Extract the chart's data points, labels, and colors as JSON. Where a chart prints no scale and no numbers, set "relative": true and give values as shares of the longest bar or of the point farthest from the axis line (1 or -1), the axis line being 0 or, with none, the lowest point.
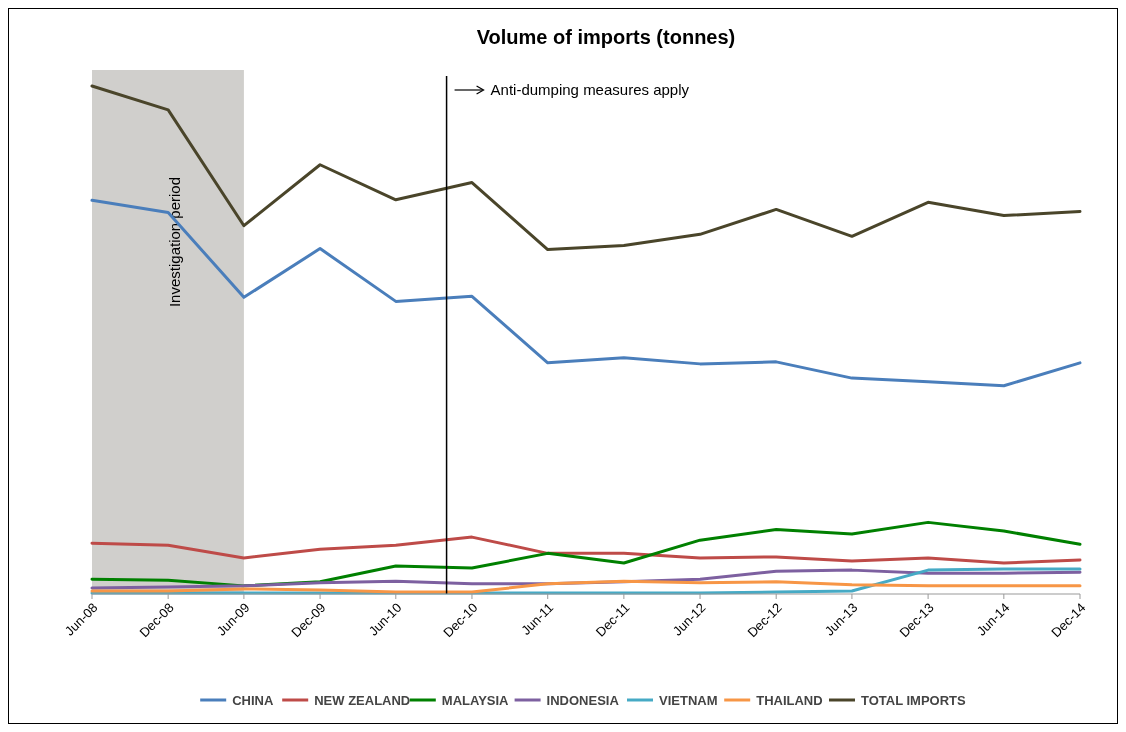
{
  "chart_data": {
    "type": "line",
    "title": "Volume of imports (tonnes)",
    "relative": true,
    "x": [
      "2008-06",
      "2008-12",
      "2009-06",
      "2009-12",
      "2010-06",
      "2010-12",
      "2011-06",
      "2011-12",
      "2012-06",
      "2012-12",
      "2013-06",
      "2013-12",
      "2014-06",
      "2014-12"
    ],
    "xlim": [
      "2008-06",
      "2014-12"
    ],
    "xticks": [
      {
        "value": "2008-06",
        "label": "Jun-08"
      },
      {
        "value": "2008-12",
        "label": "Dec-08"
      },
      {
        "value": "2009-06",
        "label": "Jun-09"
      },
      {
        "value": "2009-12",
        "label": "Dec-09"
      },
      {
        "value": "2010-06",
        "label": "Jun-10"
      },
      {
        "value": "2010-12",
        "label": "Dec-10"
      },
      {
        "value": "2011-06",
        "label": "Jun-11"
      },
      {
        "value": "2011-12",
        "label": "Dec-11"
      },
      {
        "value": "2012-06",
        "label": "Jun-12"
      },
      {
        "value": "2012-12",
        "label": "Dec-12"
      },
      {
        "value": "2013-06",
        "label": "Jun-13"
      },
      {
        "value": "2013-12",
        "label": "Dec-13"
      },
      {
        "value": "2014-06",
        "label": "Jun-14"
      },
      {
        "value": "2014-12",
        "label": "Dec-14"
      }
    ],
    "series": [
      {
        "name": "CHINA",
        "color": "#4a7ebb",
        "values": [
          0.775,
          0.751,
          0.584,
          0.68,
          0.576,
          0.586,
          0.455,
          0.465,
          0.453,
          0.457,
          0.425,
          0.418,
          0.41,
          0.455
        ]
      },
      {
        "name": "NEW ZEALAND",
        "color": "#be4b48",
        "values": [
          0.1,
          0.096,
          0.071,
          0.088,
          0.096,
          0.112,
          0.08,
          0.08,
          0.071,
          0.073,
          0.065,
          0.071,
          0.061,
          0.067
        ]
      },
      {
        "name": "MALAYSIA",
        "color": "#008000",
        "values": [
          0.029,
          0.027,
          0.016,
          0.024,
          0.055,
          0.051,
          0.08,
          0.061,
          0.106,
          0.127,
          0.118,
          0.141,
          0.124,
          0.098
        ]
      },
      {
        "name": "INDONESIA",
        "color": "#7d60a0",
        "values": [
          0.012,
          0.014,
          0.016,
          0.022,
          0.025,
          0.02,
          0.02,
          0.024,
          0.029,
          0.045,
          0.047,
          0.041,
          0.041,
          0.043
        ]
      },
      {
        "name": "VIETNAM",
        "color": "#46aac5",
        "values": [
          0.002,
          0.002,
          0.002,
          0.002,
          0.002,
          0.002,
          0.002,
          0.002,
          0.002,
          0.004,
          0.006,
          0.047,
          0.049,
          0.049
        ]
      },
      {
        "name": "THAILAND",
        "color": "#f79646",
        "values": [
          0.006,
          0.006,
          0.01,
          0.008,
          0.004,
          0.004,
          0.02,
          0.025,
          0.022,
          0.024,
          0.018,
          0.016,
          0.016,
          0.016
        ]
      },
      {
        "name": "TOTAL IMPORTS",
        "color": "#4a452a",
        "values": [
          1.0,
          0.953,
          0.725,
          0.845,
          0.776,
          0.81,
          0.678,
          0.686,
          0.708,
          0.757,
          0.704,
          0.771,
          0.745,
          0.753
        ]
      }
    ],
    "bands": [
      {
        "axis": "x",
        "from": "2008-06",
        "to": "2009-06",
        "label": "Investigation period",
        "color": "#d0cfcc"
      }
    ],
    "ref_lines": [
      {
        "axis": "x",
        "value": "2010-10",
        "label": "Anti-dumping measures apply",
        "color": "#000000"
      }
    ],
    "legend": "bottom",
    "grid": false,
    "marker": "none",
    "line_style": "solid"
  }
}
